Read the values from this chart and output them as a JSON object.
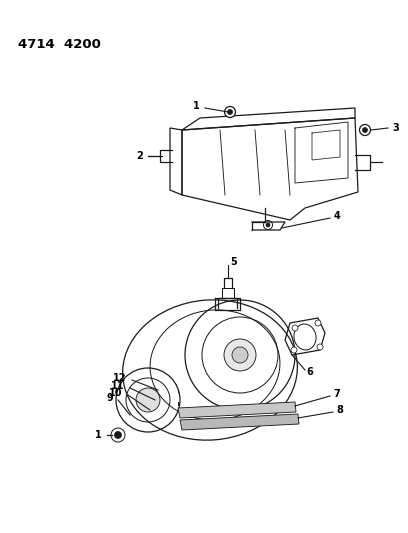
{
  "title": "4714  4200",
  "bg_color": "#ffffff",
  "text_color": "#000000",
  "lc": "#1a1a1a",
  "lw": 0.9,
  "title_fontsize": 9.5,
  "label_fontsize": 7
}
